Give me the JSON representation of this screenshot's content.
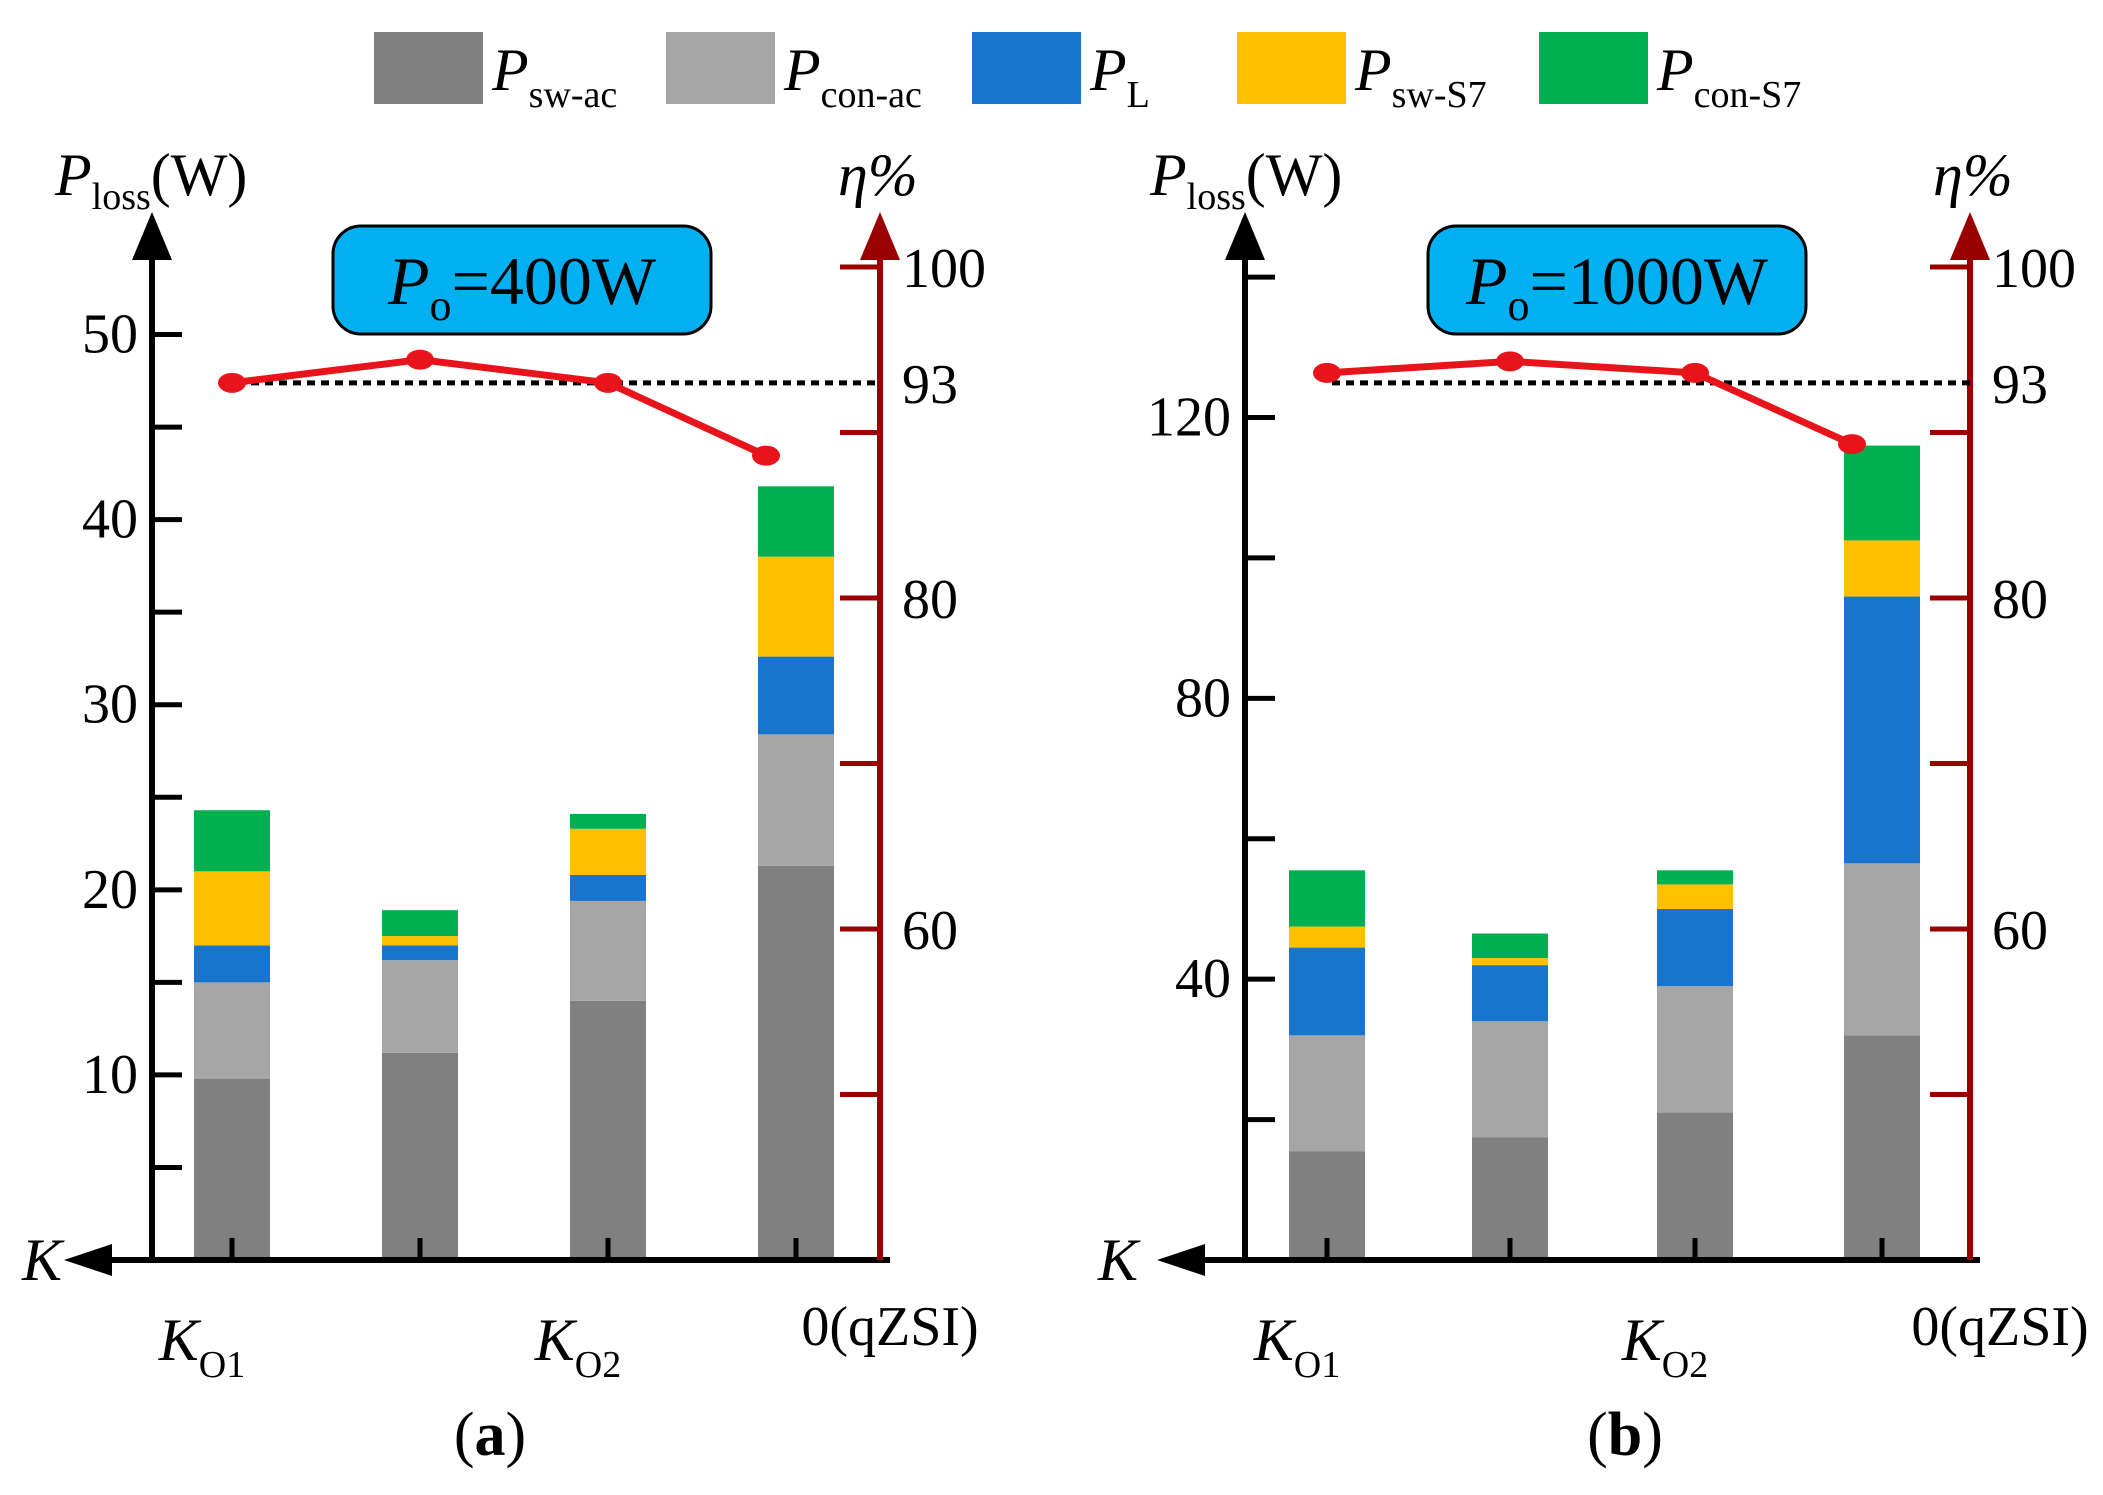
{
  "chart_data": {
    "type": "bar",
    "legend": {
      "placement": "top",
      "entries": [
        {
          "symbol": "P",
          "subscript": "sw-ac",
          "color": "#808080"
        },
        {
          "symbol": "P",
          "subscript": "con-ac",
          "color": "#a6a6a6"
        },
        {
          "symbol": "P",
          "subscript": "L",
          "color": "#1874cd"
        },
        {
          "symbol": "P",
          "subscript": "sw-S7",
          "color": "#ffc000"
        },
        {
          "symbol": "P",
          "subscript": "con-S7",
          "color": "#00b050"
        }
      ]
    },
    "panels": [
      {
        "caption": "(a)",
        "annotation_symbol": "P",
        "annotation_sub": "o",
        "annotation_value": "=400W",
        "ylabel_symbol": "P",
        "ylabel_sub": "loss",
        "ylabel_unit": "(W)",
        "y2label": "η%",
        "xlabel": "K",
        "ylim": [
          0,
          55
        ],
        "y_ticks": [
          10,
          20,
          30,
          40,
          50
        ],
        "y_tick_labels": [
          "10",
          "20",
          "30",
          "40",
          "50"
        ],
        "y_minor_step": 5,
        "y2lim": [
          40,
          100
        ],
        "y2_ticks": [
          50,
          60,
          70,
          80,
          90,
          100
        ],
        "y2_tick_labels": [
          {
            "value": 60,
            "text": "60"
          },
          {
            "value": 80,
            "text": "80"
          },
          {
            "value": 93,
            "text": "93"
          },
          {
            "value": 100,
            "text": "100"
          }
        ],
        "reference_line": 93,
        "categories": [
          {
            "main": "K",
            "sub": "O1",
            "plain": ""
          },
          {
            "main": "",
            "sub": "",
            "plain": ""
          },
          {
            "main": "K",
            "sub": "O2",
            "plain": ""
          },
          {
            "main": "",
            "sub": "",
            "plain": "0(qZSI)"
          }
        ],
        "series": [
          {
            "name": "Psw-ac",
            "values": [
              9.8,
              11.2,
              14.0,
              21.3
            ]
          },
          {
            "name": "Pcon-ac",
            "values": [
              5.2,
              5.0,
              5.4,
              7.1
            ]
          },
          {
            "name": "PL",
            "values": [
              2.0,
              0.8,
              1.4,
              4.2
            ]
          },
          {
            "name": "Psw-S7",
            "values": [
              4.0,
              0.5,
              2.5,
              5.4
            ]
          },
          {
            "name": "Pcon-S7",
            "values": [
              3.3,
              1.4,
              0.8,
              3.8
            ]
          }
        ],
        "efficiency": [
          93.0,
          94.4,
          93.0,
          88.6
        ]
      },
      {
        "caption": "(b)",
        "annotation_symbol": "P",
        "annotation_sub": "o",
        "annotation_value": "=1000W",
        "ylabel_symbol": "P",
        "ylabel_sub": "loss",
        "ylabel_unit": "(W)",
        "y2label": "η%",
        "xlabel": "K",
        "ylim": [
          0,
          145
        ],
        "y_ticks": [
          40,
          80,
          120
        ],
        "y_tick_labels": [
          "40",
          "80",
          "120"
        ],
        "y_minor_step": 20,
        "y2lim": [
          40,
          100
        ],
        "y2_ticks": [
          50,
          60,
          70,
          80,
          90,
          100
        ],
        "y2_tick_labels": [
          {
            "value": 60,
            "text": "60"
          },
          {
            "value": 80,
            "text": "80"
          },
          {
            "value": 93,
            "text": "93"
          },
          {
            "value": 100,
            "text": "100"
          }
        ],
        "reference_line": 93,
        "categories": [
          {
            "main": "K",
            "sub": "O1",
            "plain": ""
          },
          {
            "main": "",
            "sub": "",
            "plain": ""
          },
          {
            "main": "K",
            "sub": "O2",
            "plain": ""
          },
          {
            "main": "",
            "sub": "",
            "plain": "0(qZSI)"
          }
        ],
        "series": [
          {
            "name": "Psw-ac",
            "values": [
              15.5,
              17.5,
              21.0,
              32.0
            ]
          },
          {
            "name": "Pcon-ac",
            "values": [
              16.5,
              16.5,
              18.0,
              24.5
            ]
          },
          {
            "name": "PL",
            "values": [
              12.5,
              8.0,
              11.0,
              38.0
            ]
          },
          {
            "name": "Psw-S7",
            "values": [
              3.0,
              1.0,
              3.5,
              8.0
            ]
          },
          {
            "name": "Pcon-S7",
            "values": [
              8.0,
              3.5,
              2.0,
              13.5
            ]
          }
        ],
        "efficiency": [
          93.6,
          94.3,
          93.6,
          89.3
        ]
      }
    ],
    "colors": {
      "axis": "#000000",
      "axis2": "#9b0000",
      "efficiency_line": "#e8141b",
      "annotation_fill": "#00b0f0",
      "reference_line": "#000000"
    }
  }
}
